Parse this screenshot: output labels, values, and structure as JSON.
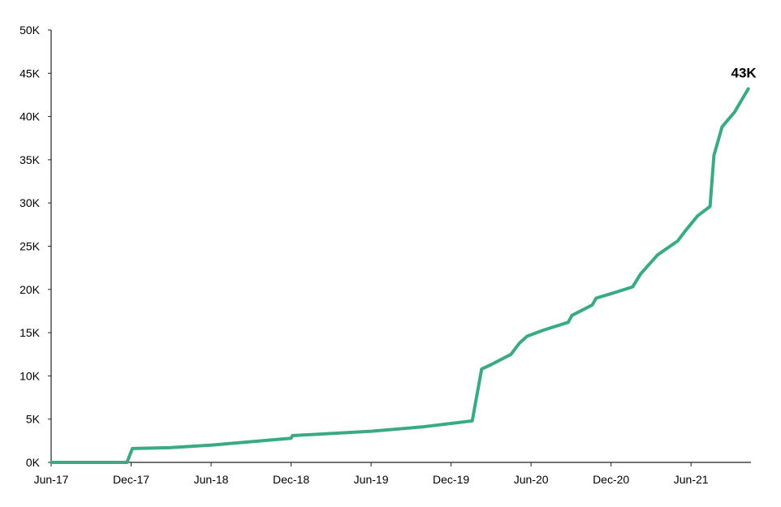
{
  "chart_data": {
    "type": "line",
    "title": "",
    "xlabel": "",
    "ylabel": "",
    "ylim": [
      0,
      50000
    ],
    "xlim": [
      "2017-06-01",
      "2021-11-01"
    ],
    "grid": false,
    "legend": "none",
    "y_ticks": [
      {
        "value": 0,
        "label": "0K"
      },
      {
        "value": 5000,
        "label": "5K"
      },
      {
        "value": 10000,
        "label": "10K"
      },
      {
        "value": 15000,
        "label": "15K"
      },
      {
        "value": 20000,
        "label": "20K"
      },
      {
        "value": 25000,
        "label": "25K"
      },
      {
        "value": 30000,
        "label": "30K"
      },
      {
        "value": 35000,
        "label": "35K"
      },
      {
        "value": 40000,
        "label": "40K"
      },
      {
        "value": 45000,
        "label": "45K"
      },
      {
        "value": 50000,
        "label": "50K"
      }
    ],
    "x_ticks": [
      {
        "value": "2017-06-01",
        "label": "Jun-17"
      },
      {
        "value": "2017-12-01",
        "label": "Dec-17"
      },
      {
        "value": "2018-06-01",
        "label": "Jun-18"
      },
      {
        "value": "2018-12-01",
        "label": "Dec-18"
      },
      {
        "value": "2019-06-01",
        "label": "Jun-19"
      },
      {
        "value": "2019-12-01",
        "label": "Dec-19"
      },
      {
        "value": "2020-06-01",
        "label": "Jun-20"
      },
      {
        "value": "2020-12-01",
        "label": "Dec-20"
      },
      {
        "value": "2021-06-01",
        "label": "Jun-21"
      }
    ],
    "series": [
      {
        "color": "#3aaa85",
        "points": [
          [
            "2017-06-01",
            0
          ],
          [
            "2017-11-22",
            0
          ],
          [
            "2017-12-04",
            1600
          ],
          [
            "2018-02-28",
            1700
          ],
          [
            "2018-06-01",
            2000
          ],
          [
            "2018-12-01",
            2800
          ],
          [
            "2018-12-04",
            3100
          ],
          [
            "2019-06-01",
            3600
          ],
          [
            "2019-09-26",
            4100
          ],
          [
            "2019-12-01",
            4500
          ],
          [
            "2020-01-19",
            4800
          ],
          [
            "2020-02-10",
            10800
          ],
          [
            "2020-03-01",
            11300
          ],
          [
            "2020-04-16",
            12500
          ],
          [
            "2020-05-05",
            13800
          ],
          [
            "2020-05-23",
            14600
          ],
          [
            "2020-06-30",
            15300
          ],
          [
            "2020-08-25",
            16200
          ],
          [
            "2020-09-03",
            17000
          ],
          [
            "2020-10-19",
            18200
          ],
          [
            "2020-10-28",
            19000
          ],
          [
            "2020-12-01",
            19500
          ],
          [
            "2021-01-20",
            20300
          ],
          [
            "2021-02-08",
            21800
          ],
          [
            "2021-03-16",
            24000
          ],
          [
            "2021-05-01",
            25600
          ],
          [
            "2021-05-19",
            26800
          ],
          [
            "2021-06-16",
            28500
          ],
          [
            "2021-07-14",
            29600
          ],
          [
            "2021-07-23",
            35500
          ],
          [
            "2021-08-11",
            38800
          ],
          [
            "2021-09-09",
            40500
          ],
          [
            "2021-10-10",
            43200
          ]
        ]
      }
    ],
    "annotations": [
      {
        "text": "43K",
        "x": "2021-10-10",
        "y": 43200
      }
    ]
  }
}
